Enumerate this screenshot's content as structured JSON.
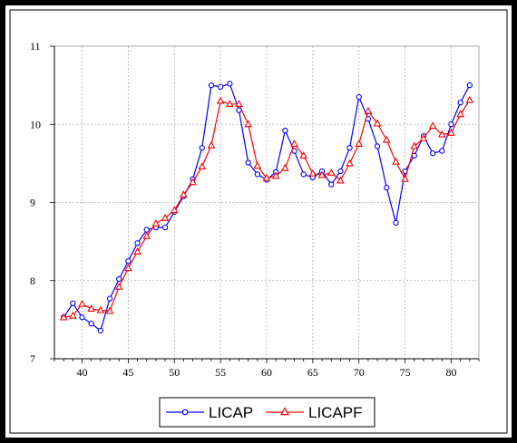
{
  "chart_data": {
    "type": "line",
    "title": "",
    "xlabel": "",
    "ylabel": "",
    "xlim": [
      37,
      83
    ],
    "ylim": [
      7,
      11
    ],
    "x_ticks": [
      40,
      45,
      50,
      55,
      60,
      65,
      70,
      75,
      80
    ],
    "y_ticks": [
      7,
      8,
      9,
      10,
      11
    ],
    "grid": true,
    "legend_position": "bottom-center",
    "x": [
      38,
      39,
      40,
      41,
      42,
      43,
      44,
      45,
      46,
      47,
      48,
      49,
      50,
      51,
      52,
      53,
      54,
      55,
      56,
      57,
      58,
      59,
      60,
      61,
      62,
      63,
      64,
      65,
      66,
      67,
      68,
      69,
      70,
      71,
      72,
      73,
      74,
      75,
      76,
      77,
      78,
      79,
      80,
      81,
      82
    ],
    "series": [
      {
        "name": "LICAP",
        "color": "#0000ff",
        "marker": "circle",
        "values": [
          7.53,
          7.71,
          7.53,
          7.45,
          7.36,
          7.77,
          8.02,
          8.25,
          8.48,
          8.65,
          8.68,
          8.68,
          8.88,
          9.08,
          9.3,
          9.7,
          10.5,
          10.48,
          10.52,
          10.18,
          9.51,
          9.36,
          9.29,
          9.39,
          9.92,
          9.66,
          9.36,
          9.32,
          9.4,
          9.23,
          9.4,
          9.7,
          10.35,
          10.07,
          9.72,
          9.19,
          8.74,
          9.4,
          9.6,
          9.85,
          9.63,
          9.66,
          10.0,
          10.28,
          10.5
        ]
      },
      {
        "name": "LICAPF",
        "color": "#ff0000",
        "marker": "triangle",
        "values": [
          7.53,
          7.55,
          7.7,
          7.64,
          7.62,
          7.61,
          7.92,
          8.16,
          8.37,
          8.57,
          8.73,
          8.8,
          8.9,
          9.1,
          9.26,
          9.46,
          9.73,
          10.3,
          10.26,
          10.26,
          10.0,
          9.47,
          9.31,
          9.34,
          9.44,
          9.75,
          9.6,
          9.37,
          9.35,
          9.38,
          9.28,
          9.5,
          9.75,
          10.17,
          10.01,
          9.8,
          9.52,
          9.3,
          9.72,
          9.82,
          9.98,
          9.87,
          9.89,
          10.13,
          10.31
        ]
      }
    ]
  }
}
